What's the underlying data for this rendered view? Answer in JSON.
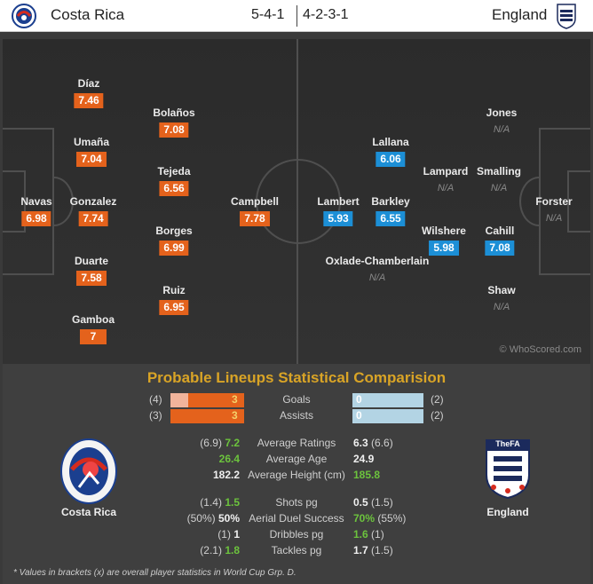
{
  "header": {
    "home_team": "Costa Rica",
    "away_team": "England",
    "home_formation": "5-4-1",
    "away_formation": "4-2-3-1"
  },
  "home_players": [
    {
      "name": "Díaz",
      "rating": "7.46"
    },
    {
      "name": "Umaña",
      "rating": "7.04"
    },
    {
      "name": "Navas",
      "rating": "6.98"
    },
    {
      "name": "Gonzalez",
      "rating": "7.74"
    },
    {
      "name": "Duarte",
      "rating": "7.58"
    },
    {
      "name": "Gamboa",
      "rating": "7"
    },
    {
      "name": "Bolaños",
      "rating": "7.08"
    },
    {
      "name": "Tejeda",
      "rating": "6.56"
    },
    {
      "name": "Borges",
      "rating": "6.99"
    },
    {
      "name": "Ruiz",
      "rating": "6.95"
    },
    {
      "name": "Campbell",
      "rating": "7.78"
    }
  ],
  "away_players": [
    {
      "name": "Lambert",
      "rating": "5.93"
    },
    {
      "name": "Lallana",
      "rating": "6.06"
    },
    {
      "name": "Barkley",
      "rating": "6.55"
    },
    {
      "name": "Wilshere",
      "rating": "5.98"
    },
    {
      "name": "Oxlade-Chamberlain",
      "rating": "N/A"
    },
    {
      "name": "Lampard",
      "rating": "N/A"
    },
    {
      "name": "Jones",
      "rating": "N/A"
    },
    {
      "name": "Smalling",
      "rating": "N/A"
    },
    {
      "name": "Cahill",
      "rating": "7.08"
    },
    {
      "name": "Shaw",
      "rating": "N/A"
    },
    {
      "name": "Forster",
      "rating": "N/A"
    }
  ],
  "watermark": "© WhoScored.com",
  "comparison": {
    "title": "Probable Lineups Statistical Comparision",
    "bar_rows": [
      {
        "label": "Goals",
        "home": "3",
        "home_bracket": "(4)",
        "away": "0",
        "away_bracket": "(2)"
      },
      {
        "label": "Assists",
        "home": "3",
        "home_bracket": "(3)",
        "away": "0",
        "away_bracket": "(2)"
      }
    ],
    "group1": [
      {
        "label": "Average Ratings",
        "home_bracket": "(6.9)",
        "home": "7.2",
        "away": "6.3",
        "away_bracket": "(6.6)"
      },
      {
        "label": "Average Age",
        "home_bracket": "",
        "home": "26.4",
        "away": "24.9",
        "away_bracket": ""
      },
      {
        "label": "Average Height (cm)",
        "home_bracket": "",
        "home": "182.2",
        "away": "185.8",
        "away_bracket": ""
      }
    ],
    "group2": [
      {
        "label": "Shots pg",
        "home_bracket": "(1.4)",
        "home": "1.5",
        "away": "0.5",
        "away_bracket": "(1.5)"
      },
      {
        "label": "Aerial Duel Success",
        "home_bracket": "(50%)",
        "home": "50%",
        "away": "70%",
        "away_bracket": "(55%)"
      },
      {
        "label": "Dribbles pg",
        "home_bracket": "(1)",
        "home": "1",
        "away": "1.6",
        "away_bracket": "(1)"
      },
      {
        "label": "Tackles pg",
        "home_bracket": "(2.1)",
        "home": "1.8",
        "away": "1.7",
        "away_bracket": "(1.5)"
      }
    ],
    "home_crest_label": "Costa Rica",
    "away_crest_label": "England",
    "away_crest_text": "TheFA",
    "footnote": "* Values in brackets (x) are overall player statistics in World Cup Grp. D."
  },
  "colors": {
    "home_rating": "#e4621c",
    "away_rating": "#1c8fd6",
    "winner": "#6cc33d",
    "title": "#d9a426"
  }
}
